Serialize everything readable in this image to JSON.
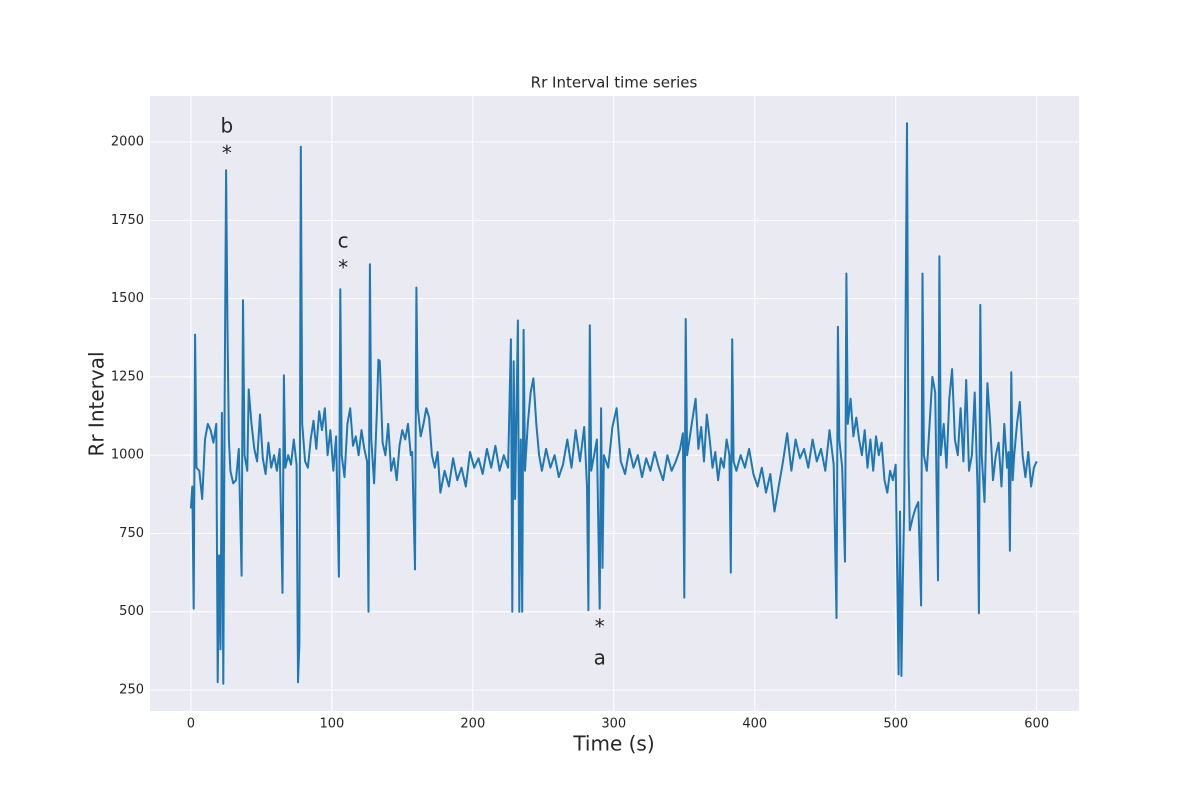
{
  "chart_data": {
    "type": "line",
    "title": "Rr Interval time series",
    "xlabel": "Time (s)",
    "ylabel": "Rr Interval",
    "x": [
      0,
      1,
      2,
      3,
      4,
      6,
      8,
      10,
      12,
      14,
      16,
      18,
      19,
      20,
      21,
      22,
      23,
      24,
      25,
      26,
      27,
      28,
      30,
      32,
      34,
      36,
      37,
      38,
      40,
      41,
      43,
      45,
      47,
      49,
      51,
      53,
      55,
      57,
      59,
      61,
      63,
      65,
      66,
      67,
      69,
      71,
      73,
      75,
      76,
      77,
      78,
      79,
      81,
      83,
      85,
      87,
      89,
      91,
      93,
      95,
      97,
      99,
      101,
      103,
      105,
      106,
      107,
      109,
      111,
      113,
      115,
      117,
      119,
      121,
      123,
      125,
      126,
      127,
      128,
      130,
      132,
      133,
      134,
      136,
      138,
      140,
      142,
      144,
      146,
      148,
      150,
      152,
      154,
      156,
      157,
      159,
      160,
      161,
      163,
      165,
      167,
      169,
      171,
      173,
      175,
      177,
      180,
      183,
      186,
      189,
      192,
      195,
      198,
      201,
      204,
      207,
      210,
      213,
      216,
      219,
      222,
      225,
      227,
      228,
      229,
      230,
      232,
      233,
      234,
      235,
      236,
      237,
      239,
      241,
      243,
      245,
      247,
      249,
      252,
      255,
      258,
      261,
      264,
      267,
      270,
      273,
      276,
      279,
      281,
      282,
      283,
      284,
      286,
      288,
      290,
      291,
      292,
      293,
      296,
      299,
      302,
      305,
      308,
      311,
      314,
      317,
      320,
      323,
      326,
      329,
      332,
      335,
      338,
      341,
      344,
      347,
      349,
      350,
      351,
      352,
      354,
      356,
      358,
      360,
      362,
      364,
      366,
      368,
      370,
      372,
      374,
      376,
      378,
      380,
      382,
      383,
      384,
      385,
      387,
      390,
      393,
      396,
      399,
      402,
      405,
      408,
      411,
      414,
      417,
      420,
      423,
      426,
      429,
      432,
      435,
      438,
      441,
      444,
      447,
      450,
      453,
      456,
      458,
      459,
      460,
      462,
      464,
      465,
      466,
      468,
      470,
      472,
      474,
      476,
      478,
      480,
      482,
      484,
      486,
      488,
      490,
      492,
      494,
      496,
      498,
      500,
      502,
      503,
      504,
      505,
      506,
      508,
      509,
      510,
      512,
      514,
      516,
      518,
      519,
      520,
      522,
      524,
      526,
      528,
      530,
      531,
      532,
      534,
      536,
      538,
      540,
      542,
      544,
      546,
      548,
      550,
      552,
      554,
      556,
      558,
      559,
      560,
      561,
      563,
      565,
      567,
      569,
      571,
      573,
      575,
      577,
      579,
      580,
      581,
      582,
      583,
      584,
      586,
      588,
      590,
      592,
      594,
      596,
      598,
      600
    ],
    "values": [
      830,
      900,
      510,
      1385,
      960,
      950,
      860,
      1050,
      1100,
      1080,
      1040,
      1100,
      275,
      680,
      380,
      1135,
      270,
      1200,
      1910,
      1400,
      1050,
      950,
      910,
      920,
      1020,
      615,
      1495,
      1000,
      950,
      1210,
      1100,
      1020,
      980,
      1130,
      990,
      940,
      1040,
      960,
      1000,
      950,
      1020,
      560,
      1255,
      960,
      1000,
      970,
      1050,
      970,
      275,
      400,
      1985,
      1100,
      980,
      960,
      1050,
      1110,
      1020,
      1140,
      1080,
      1150,
      1000,
      1080,
      950,
      1060,
      612,
      1530,
      1000,
      930,
      1100,
      1150,
      1030,
      1060,
      1000,
      1080,
      1020,
      980,
      500,
      1610,
      1050,
      910,
      1150,
      1305,
      1300,
      1040,
      1000,
      1100,
      950,
      990,
      920,
      1030,
      1080,
      1050,
      1100,
      1000,
      1010,
      635,
      1535,
      1150,
      1060,
      1100,
      1150,
      1120,
      1000,
      960,
      1010,
      880,
      950,
      900,
      990,
      920,
      960,
      900,
      1010,
      960,
      990,
      940,
      1020,
      960,
      1030,
      950,
      1000,
      960,
      1370,
      500,
      1300,
      860,
      1430,
      500,
      1050,
      500,
      1400,
      950,
      1100,
      1200,
      1245,
      1100,
      1000,
      950,
      1020,
      960,
      1000,
      930,
      970,
      1050,
      960,
      1080,
      980,
      1090,
      900,
      505,
      1415,
      950,
      1000,
      1050,
      510,
      1150,
      640,
      1000,
      960,
      1090,
      1150,
      980,
      940,
      1020,
      960,
      1000,
      930,
      990,
      950,
      1010,
      960,
      920,
      1000,
      950,
      980,
      1020,
      1070,
      545,
      1435,
      1000,
      1060,
      1120,
      1180,
      1020,
      1090,
      980,
      1130,
      1050,
      960,
      1010,
      920,
      990,
      960,
      1050,
      1000,
      625,
      1370,
      980,
      950,
      1000,
      960,
      1020,
      940,
      900,
      960,
      880,
      940,
      820,
      900,
      980,
      1070,
      950,
      1050,
      990,
      1020,
      960,
      1050,
      980,
      1020,
      950,
      1080,
      970,
      480,
      1410,
      1050,
      960,
      660,
      1580,
      1100,
      1180,
      1060,
      1120,
      1050,
      1000,
      1080,
      960,
      1050,
      950,
      1060,
      1000,
      1040,
      920,
      880,
      950,
      920,
      970,
      300,
      820,
      295,
      600,
      830,
      2060,
      1000,
      760,
      800,
      830,
      850,
      520,
      1580,
      1000,
      950,
      1100,
      1250,
      1200,
      600,
      1635,
      1000,
      1100,
      960,
      1180,
      1275,
      1050,
      1000,
      1150,
      980,
      1240,
      950,
      1000,
      1200,
      900,
      495,
      1480,
      1000,
      850,
      1230,
      1100,
      920,
      1000,
      1040,
      900,
      1100,
      960,
      1010,
      695,
      1265,
      920,
      1000,
      1100,
      1170,
      1000,
      930,
      1010,
      900,
      960,
      980
    ],
    "color": "#1f77b4",
    "xlim": [
      -29,
      630
    ],
    "xticks": [
      0,
      100,
      200,
      300,
      400,
      500,
      600
    ],
    "ylim": [
      183,
      2147
    ],
    "yticks": [
      250,
      500,
      750,
      1000,
      1250,
      1500,
      1750,
      2000
    ],
    "grid": true,
    "annotations": [
      {
        "text": "b",
        "x": 25.5,
        "y": 2048
      },
      {
        "text": "*",
        "x": 25.5,
        "y": 1960
      },
      {
        "text": "c",
        "x": 108,
        "y": 1681
      },
      {
        "text": "*",
        "x": 108,
        "y": 1595
      },
      {
        "text": "*",
        "x": 290,
        "y": 448
      },
      {
        "text": "a",
        "x": 290,
        "y": 349
      }
    ]
  }
}
